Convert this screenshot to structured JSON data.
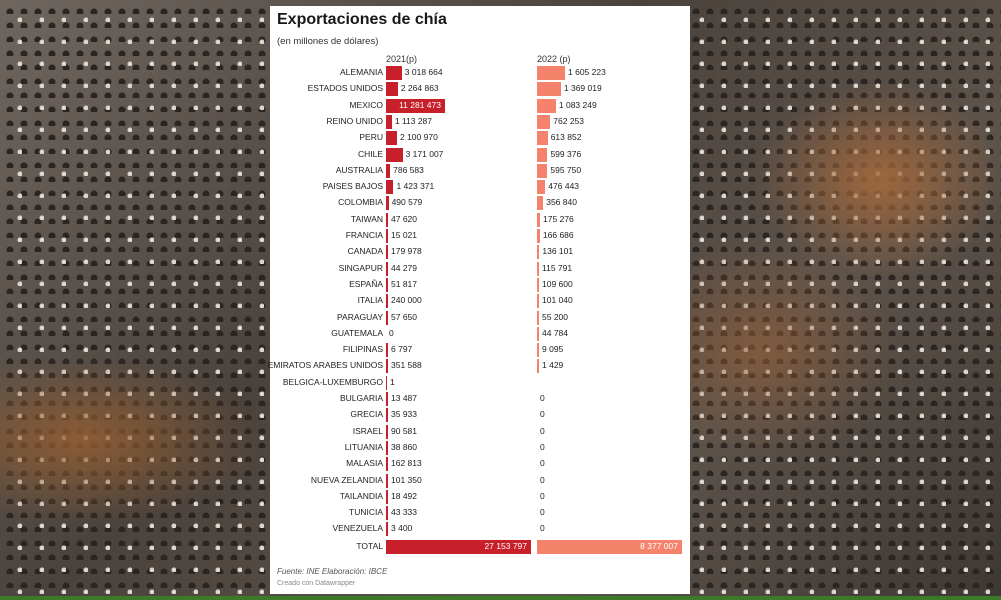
{
  "chart_data": {
    "type": "bar",
    "title": "Exportaciones de chía",
    "subtitle": "(en millones de dólares)",
    "series": [
      {
        "name": "2021(p)",
        "color": "#c8202a",
        "labels": [
          "3 018 664",
          "2 264 863",
          "11 281 473",
          "1 113 287",
          "2 100 970",
          "3 171 007",
          "786 583",
          "1 423 371",
          "490 579",
          "47 620",
          "15 021",
          "179 978",
          "44 279",
          "51 817",
          "240 000",
          "57 650",
          "0",
          "6 797",
          "351 588",
          "1",
          "13 487",
          "35 933",
          "90 581",
          "38 860",
          "162 813",
          "101 350",
          "18 492",
          "43 333",
          "3 400"
        ],
        "values": [
          3018664,
          2264863,
          11281473,
          1113287,
          2100970,
          3171007,
          786583,
          1423371,
          490579,
          47620,
          15021,
          179978,
          44279,
          51817,
          240000,
          57650,
          0,
          6797,
          351588,
          1,
          13487,
          35933,
          90581,
          38860,
          162813,
          101350,
          18492,
          43333,
          3400
        ],
        "total": 27153797,
        "total_label": "27 153 797"
      },
      {
        "name": "2022 (p)",
        "color": "#f5836c",
        "labels": [
          "1 605 223",
          "1 369 019",
          "1 083 249",
          "762 253",
          "613 852",
          "599 376",
          "595 750",
          "476 443",
          "356 840",
          "175 276",
          "166 686",
          "136 101",
          "115 791",
          "109 600",
          "101 040",
          "55 200",
          "44 784",
          "9 095",
          "1 429",
          "",
          "0",
          "0",
          "0",
          "0",
          "0",
          "0",
          "0",
          "0",
          "0"
        ],
        "values": [
          1605223,
          1369019,
          1083249,
          762253,
          613852,
          599376,
          595750,
          476443,
          356840,
          175276,
          166686,
          136101,
          115791,
          109600,
          101040,
          55200,
          44784,
          9095,
          1429,
          null,
          0,
          0,
          0,
          0,
          0,
          0,
          0,
          0,
          0
        ],
        "total": 8377007,
        "total_label": "8 377 007"
      }
    ],
    "categories": [
      "ALEMANIA",
      "ESTADOS UNIDOS",
      "MEXICO",
      "REINO UNIDO",
      "PERU",
      "CHILE",
      "AUSTRALIA",
      "PAISES BAJOS",
      "COLOMBIA",
      "TAIWAN",
      "FRANCIA",
      "CANADA",
      "SINGAPUR",
      "ESPAÑA",
      "ITALIA",
      "PARAGUAY",
      "GUATEMALA",
      "FILIPINAS",
      "EMIRATOS ARABES UNIDOS",
      "BELGICA-LUXEMBURGO",
      "BULGARIA",
      "GRECIA",
      "ISRAEL",
      "LITUANIA",
      "MALASIA",
      "NUEVA ZELANDIA",
      "TAILANDIA",
      "TUNICIA",
      "VENEZUELA"
    ],
    "total_label": "TOTAL"
  },
  "footer": {
    "source": "Fuente: INE Elaboración: IBCE",
    "credit": "Creado con Datawrapper"
  }
}
